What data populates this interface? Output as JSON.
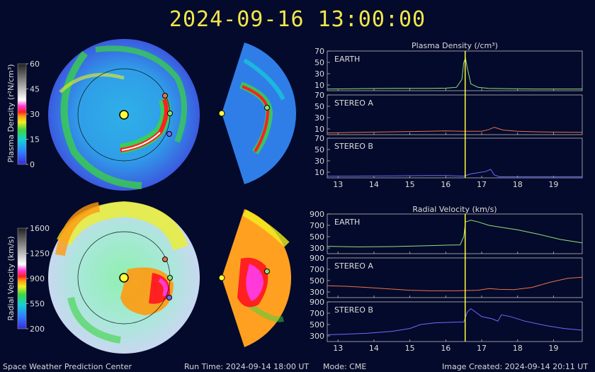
{
  "title": "2024-09-16 13:00:00",
  "footer": {
    "center": "Space Weather Prediction Center",
    "run_time": "Run Time: 2024-09-14 18:00 UT",
    "mode": "Mode: CME",
    "image_created": "Image Created: 2024-09-14 20:11 UT"
  },
  "colors": {
    "background": "#040a2b",
    "earth": "#8fe07a",
    "stereo_a": "#e8744a",
    "stereo_b": "#6b6bff",
    "marker": "#ffff3a",
    "title": "#f2e64a"
  },
  "colorbars": {
    "density": {
      "label": "Plasma Density (r²N/cm³)",
      "ticks": [
        0,
        15,
        30,
        45,
        60
      ]
    },
    "velocity": {
      "label": "Radial Velocity (km/s)",
      "ticks": [
        200,
        550,
        900,
        1250,
        1600
      ]
    }
  },
  "chart_data": [
    {
      "type": "line",
      "title": "Plasma Density (/cm³)",
      "xlim": [
        12.7,
        19.8
      ],
      "xticks": [
        13,
        14,
        15,
        16,
        17,
        18,
        19
      ],
      "current_time": 16.54,
      "panels": [
        {
          "name": "EARTH",
          "ylim": [
            0,
            70
          ],
          "yticks": [
            10,
            30,
            50,
            70
          ],
          "x": [
            12.7,
            13.5,
            14.5,
            15.5,
            16.0,
            16.3,
            16.45,
            16.5,
            16.55,
            16.6,
            16.7,
            16.9,
            17.2,
            17.8,
            18.5,
            19.8
          ],
          "y": [
            3,
            3.5,
            4,
            4,
            4.5,
            6,
            20,
            50,
            57,
            40,
            12,
            6,
            4,
            3.5,
            3,
            3
          ]
        },
        {
          "name": "STEREO A",
          "ylim": [
            0,
            70
          ],
          "yticks": [
            10,
            30,
            50,
            70
          ],
          "x": [
            12.7,
            13.5,
            14.5,
            15.5,
            16.0,
            16.5,
            17.0,
            17.2,
            17.35,
            17.6,
            18.0,
            18.5,
            19.0,
            19.8
          ],
          "y": [
            3,
            4,
            5,
            6,
            6.5,
            6,
            6,
            9,
            13,
            8,
            6,
            5,
            4.5,
            4
          ]
        },
        {
          "name": "STEREO B",
          "ylim": [
            0,
            70
          ],
          "yticks": [
            10,
            30,
            50,
            70
          ],
          "x": [
            12.7,
            13.5,
            14.5,
            15.5,
            16.0,
            16.5,
            16.7,
            16.9,
            17.1,
            17.25,
            17.35,
            17.5,
            18.5,
            19.8
          ],
          "y": [
            3,
            3,
            3.5,
            4,
            4,
            3,
            7,
            9,
            11,
            15,
            5,
            2,
            2,
            2
          ]
        }
      ]
    },
    {
      "type": "line",
      "title": "Radial Velocity (km/s)",
      "xlim": [
        12.7,
        19.8
      ],
      "xticks": [
        13,
        14,
        15,
        16,
        17,
        18,
        19
      ],
      "current_time": 16.54,
      "panels": [
        {
          "name": "EARTH",
          "ylim": [
            200,
            900
          ],
          "yticks": [
            300,
            500,
            700,
            900
          ],
          "x": [
            12.7,
            13.5,
            14.5,
            15.5,
            16.0,
            16.4,
            16.5,
            16.55,
            16.7,
            16.9,
            17.2,
            17.6,
            18.0,
            18.6,
            19.2,
            19.8
          ],
          "y": [
            330,
            320,
            325,
            340,
            350,
            355,
            500,
            760,
            790,
            760,
            700,
            660,
            620,
            540,
            450,
            390
          ]
        },
        {
          "name": "STEREO A",
          "ylim": [
            200,
            900
          ],
          "yticks": [
            300,
            500,
            700,
            900
          ],
          "x": [
            12.7,
            13.2,
            13.8,
            14.5,
            15.0,
            15.6,
            16.3,
            16.9,
            17.2,
            17.5,
            17.9,
            18.4,
            18.9,
            19.4,
            19.8
          ],
          "y": [
            410,
            400,
            380,
            350,
            330,
            320,
            320,
            330,
            360,
            345,
            340,
            380,
            470,
            540,
            560
          ]
        },
        {
          "name": "STEREO B",
          "ylim": [
            200,
            900
          ],
          "yticks": [
            300,
            500,
            700,
            900
          ],
          "x": [
            12.7,
            13.2,
            13.8,
            14.5,
            15.0,
            15.3,
            15.7,
            16.2,
            16.5,
            16.6,
            16.7,
            17.0,
            17.3,
            17.45,
            17.55,
            17.8,
            18.2,
            18.8,
            19.3,
            19.8
          ],
          "y": [
            320,
            330,
            345,
            380,
            430,
            500,
            530,
            540,
            545,
            720,
            780,
            640,
            600,
            560,
            670,
            640,
            560,
            480,
            430,
            400
          ]
        }
      ]
    }
  ]
}
